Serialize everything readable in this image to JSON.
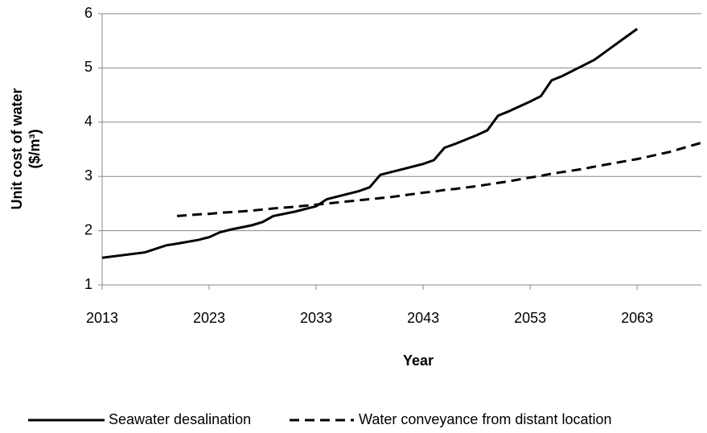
{
  "chart_data": {
    "type": "line",
    "y_label": [
      "Unit cost of water",
      "($/m³)"
    ],
    "x_label": "Year",
    "x": [
      2013,
      2017,
      2019,
      2020,
      2022,
      2023,
      2024,
      2025,
      2027,
      2028,
      2029,
      2031,
      2033,
      2034,
      2037,
      2038,
      2039,
      2040,
      2043,
      2044,
      2045,
      2046,
      2048,
      2049,
      2050,
      2051,
      2053,
      2054,
      2055,
      2056,
      2058,
      2059,
      2063,
      2066,
      2069
    ],
    "series": [
      {
        "name": "Seawater desalination",
        "color": "#000000",
        "dash": "solid",
        "values": [
          1.5,
          1.6,
          1.73,
          1.76,
          1.83,
          1.88,
          1.97,
          2.02,
          2.1,
          2.16,
          2.27,
          2.35,
          2.45,
          2.58,
          2.73,
          2.8,
          3.03,
          3.08,
          3.23,
          3.3,
          3.53,
          3.6,
          3.76,
          3.85,
          4.12,
          4.2,
          4.38,
          4.48,
          4.77,
          4.85,
          5.05,
          5.15,
          5.72,
          null,
          null
        ]
      },
      {
        "name": "Water conveyance from distant location",
        "color": "#000000",
        "dash": "dashed",
        "values": [
          null,
          null,
          null,
          2.27,
          2.3,
          2.31,
          2.33,
          2.34,
          2.37,
          2.39,
          2.41,
          2.44,
          2.48,
          2.5,
          2.56,
          2.58,
          2.6,
          2.62,
          2.7,
          2.72,
          2.75,
          2.77,
          2.82,
          2.85,
          2.88,
          2.91,
          2.98,
          3.01,
          3.05,
          3.08,
          3.14,
          3.18,
          3.32,
          3.45,
          3.62
        ]
      }
    ],
    "xlim": [
      2013,
      2069
    ],
    "xticks": [
      2013,
      2023,
      2033,
      2043,
      2053,
      2063
    ],
    "ylim": [
      1,
      6
    ],
    "yticks": [
      1,
      2,
      3,
      4,
      5,
      6
    ],
    "grid": true,
    "legend": "bottom"
  }
}
